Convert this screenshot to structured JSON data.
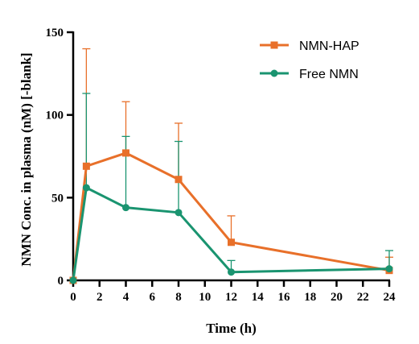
{
  "chart_data": {
    "type": "line",
    "xlabel": "Time (h)",
    "ylabel": "NMN Conc. in plasma (nM) [-blank]",
    "xlim": [
      0,
      24
    ],
    "ylim": [
      0,
      150
    ],
    "xticks": [
      0,
      2,
      4,
      6,
      8,
      10,
      12,
      14,
      16,
      18,
      20,
      22,
      24
    ],
    "yticks": [
      0,
      50,
      100,
      150
    ],
    "grid": false,
    "legend_position": "top-right",
    "series": [
      {
        "name": "NMN-HAP",
        "color": "#E8702A",
        "marker": "square",
        "x": [
          0,
          1,
          4,
          8,
          12,
          24
        ],
        "y": [
          0,
          69,
          77,
          61,
          23,
          6
        ],
        "error_upper": [
          0,
          140,
          108,
          95,
          39,
          14
        ]
      },
      {
        "name": "Free NMN",
        "color": "#1A9470",
        "marker": "circle",
        "x": [
          0,
          1,
          4,
          8,
          12,
          24
        ],
        "y": [
          0,
          56,
          44,
          41,
          5,
          7
        ],
        "error_upper": [
          0,
          113,
          87,
          84,
          12,
          18
        ]
      }
    ]
  }
}
